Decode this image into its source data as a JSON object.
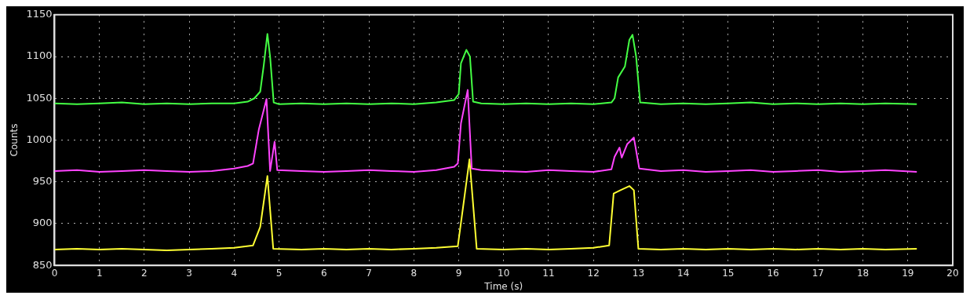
{
  "chart_data": {
    "type": "line",
    "xlabel": "Time (s)",
    "ylabel": "Counts",
    "xlim": [
      0,
      20
    ],
    "xticks": [
      0,
      1,
      2,
      3,
      4,
      5,
      6,
      7,
      8,
      9,
      10,
      11,
      12,
      13,
      14,
      15,
      16,
      17,
      18,
      19,
      20
    ],
    "ylim": [
      850,
      1150
    ],
    "yticks": [
      850,
      900,
      950,
      1000,
      1050,
      1100,
      1150
    ],
    "grid": true,
    "legend": false,
    "marker": "none",
    "line_style": "solid",
    "series": [
      {
        "color": "#44ff44",
        "x": [
          0,
          0.5,
          1,
          1.5,
          2,
          2.5,
          3,
          3.5,
          4,
          4.3,
          4.45,
          4.58,
          4.66,
          4.74,
          4.8,
          4.88,
          5,
          5.5,
          6,
          6.5,
          7,
          7.5,
          8,
          8.5,
          8.9,
          9,
          9.05,
          9.17,
          9.25,
          9.32,
          9.5,
          10,
          10.5,
          11,
          11.5,
          12,
          12.4,
          12.47,
          12.55,
          12.7,
          12.8,
          12.87,
          12.95,
          13.04,
          13.5,
          14,
          14.5,
          15,
          15.5,
          16,
          16.5,
          17,
          17.5,
          18,
          18.5,
          19.2
        ],
        "values": [
          1044,
          1043,
          1044,
          1045,
          1043,
          1044,
          1043,
          1044,
          1044,
          1046,
          1050,
          1058,
          1090,
          1127,
          1100,
          1045,
          1043,
          1044,
          1043,
          1044,
          1043,
          1044,
          1043,
          1045,
          1048,
          1055,
          1092,
          1108,
          1100,
          1046,
          1044,
          1043,
          1044,
          1043,
          1044,
          1043,
          1045,
          1050,
          1075,
          1088,
          1120,
          1126,
          1100,
          1045,
          1043,
          1044,
          1043,
          1044,
          1045,
          1043,
          1044,
          1043,
          1044,
          1043,
          1044,
          1043
        ]
      },
      {
        "color": "#ff44ff",
        "x": [
          0,
          0.5,
          1,
          1.5,
          2,
          2.5,
          3,
          3.5,
          4,
          4.3,
          4.42,
          4.55,
          4.72,
          4.8,
          4.9,
          4.96,
          5.5,
          6,
          6.5,
          7,
          7.5,
          8,
          8.5,
          8.9,
          8.98,
          9.05,
          9.2,
          9.29,
          9.5,
          10,
          10.5,
          11,
          11.5,
          12,
          12.4,
          12.47,
          12.58,
          12.63,
          12.75,
          12.9,
          13.02,
          13.5,
          14,
          14.5,
          15,
          15.5,
          16,
          16.5,
          17,
          17.5,
          18,
          18.5,
          19.2
        ],
        "values": [
          963,
          964,
          962,
          963,
          964,
          963,
          962,
          963,
          966,
          969,
          972,
          1013,
          1049,
          963,
          998,
          964,
          963,
          962,
          963,
          964,
          963,
          962,
          964,
          968,
          972,
          1020,
          1060,
          966,
          964,
          963,
          962,
          964,
          963,
          962,
          965,
          980,
          991,
          979,
          995,
          1003,
          966,
          963,
          964,
          962,
          963,
          964,
          962,
          963,
          964,
          962,
          963,
          964,
          962
        ]
      },
      {
        "color": "#ffff33",
        "x": [
          0,
          0.5,
          1,
          1.5,
          2,
          2.5,
          3,
          3.5,
          4,
          4.42,
          4.58,
          4.74,
          4.87,
          5.5,
          6,
          6.5,
          7,
          7.5,
          8,
          8.5,
          8.98,
          9.24,
          9.4,
          10,
          10.5,
          11,
          11.5,
          12,
          12.35,
          12.45,
          12.6,
          12.8,
          12.9,
          13,
          13.5,
          14,
          14.5,
          15,
          15.5,
          16,
          16.5,
          17,
          17.5,
          18,
          18.5,
          19.2
        ],
        "values": [
          869,
          870,
          869,
          870,
          869,
          868,
          869,
          870,
          871,
          874,
          896,
          957,
          870,
          869,
          870,
          869,
          870,
          869,
          870,
          871,
          873,
          977,
          870,
          869,
          870,
          869,
          870,
          871,
          874,
          936,
          940,
          945,
          940,
          870,
          869,
          870,
          869,
          870,
          869,
          870,
          869,
          870,
          869,
          870,
          869,
          870
        ]
      }
    ]
  }
}
